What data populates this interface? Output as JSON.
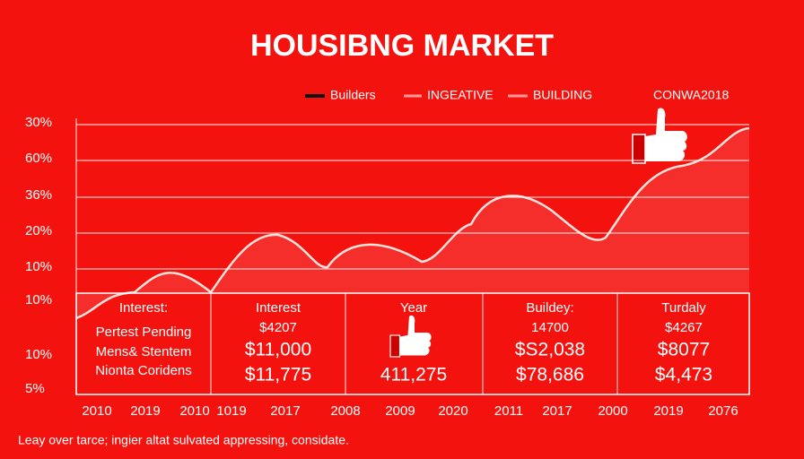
{
  "header": {
    "title": "HOUSIBNG MARKET"
  },
  "legend": [
    "Builders",
    "INGEATIVE",
    "BUILDING",
    "CONWA2018"
  ],
  "y_axis": [
    "30%",
    "60%",
    "36%",
    "20%",
    "10%",
    "10%",
    "10%",
    "5%"
  ],
  "x_axis": [
    "2010",
    "2019",
    "2010",
    "1019",
    "2017",
    "2008",
    "2009",
    "2020",
    "2011",
    "2017",
    "2000",
    "2019",
    "2076"
  ],
  "panels": [
    [
      "Interest:",
      "Pertest Pending",
      "Mens& Stentem",
      "Nionta Coridens"
    ],
    [
      "Interest",
      "$4207",
      "$11,000",
      "$11,775"
    ],
    [
      "Year",
      "411,275"
    ],
    [
      "Buildey:",
      "14700",
      "$S2,038",
      "$78,686"
    ],
    [
      "Turdaly",
      "$4267",
      "$8077",
      "$4,473"
    ]
  ],
  "footer": "Leay over tarce; ingier altat sulvated appressing, considate."
}
